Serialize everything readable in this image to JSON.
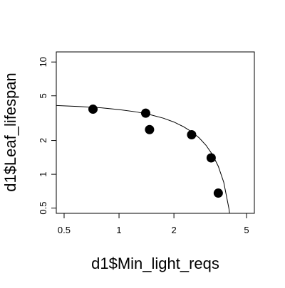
{
  "chart_data": {
    "type": "scatter",
    "xlabel": "d1$Min_light_reqs",
    "ylabel": "d1$Leaf_lifespan",
    "log_x": true,
    "log_y": true,
    "x": [
      0.72,
      1.4,
      1.47,
      2.5,
      3.2,
      3.5
    ],
    "values": [
      3.8,
      3.5,
      2.5,
      2.25,
      1.4,
      0.68
    ],
    "color": "#000000",
    "curve": {
      "x": [
        0.45,
        0.6,
        0.8,
        1,
        1.25,
        1.5,
        1.75,
        2,
        2.25,
        2.5,
        2.75,
        3,
        3.25,
        3.5,
        3.75,
        4.0,
        4.05
      ],
      "values": [
        4.1,
        4.02,
        3.91,
        3.77,
        3.59,
        3.38,
        3.16,
        2.92,
        2.66,
        2.39,
        2.11,
        1.81,
        1.5,
        1.18,
        0.85,
        0.5,
        0.43
      ]
    },
    "xlim": [
      0.453,
      5.52
    ],
    "ylim": [
      0.449,
      12.3
    ],
    "xticks": [
      0.5,
      1,
      2,
      5
    ],
    "yticks": [
      0.5,
      1,
      2,
      5,
      10
    ]
  }
}
